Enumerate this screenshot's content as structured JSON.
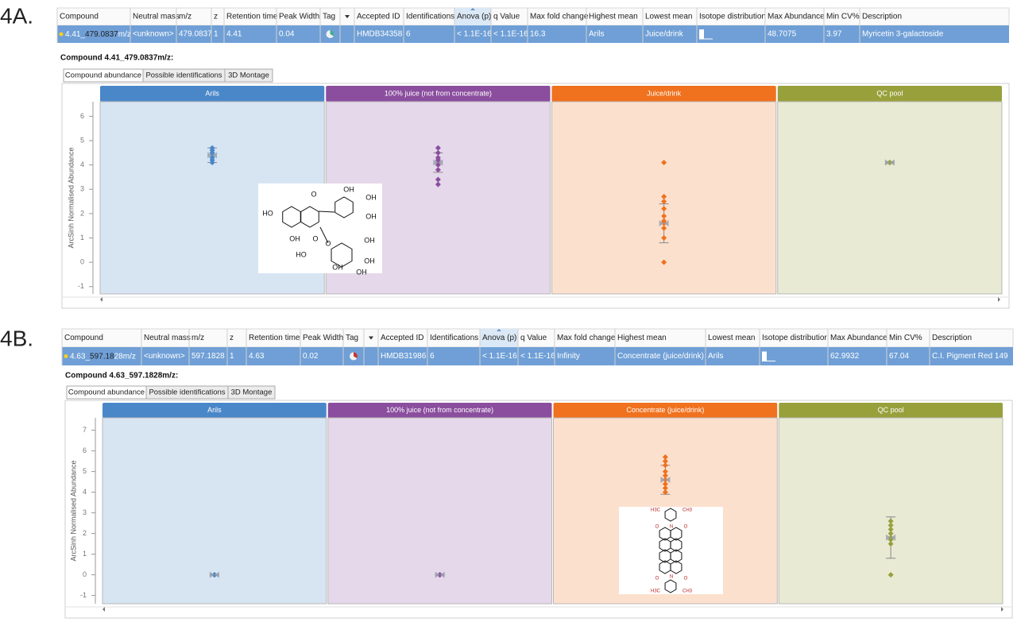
{
  "panels": [
    {
      "label": "4A.",
      "columns": [
        "Compound",
        "Neutral mass",
        "m/z",
        "z",
        "Retention time",
        "Peak Width",
        "Tag",
        null,
        "Accepted ID",
        "Identifications",
        "Anova (p)",
        "q Value",
        "Max fold change",
        "Highest mean",
        "Lowest mean",
        "Isotope distribution",
        "Max Abundance",
        "Min CV%",
        "Description"
      ],
      "row": [
        [
          "4.41_",
          "479.0837",
          "m/z"
        ],
        "<unknown>",
        "479.0837",
        "1",
        "4.41",
        "0.04",
        null,
        null,
        "HMDB34358",
        "6",
        "< 1.1E-16",
        "< 1.1E-16",
        "16.3",
        "Arils",
        "Juice/drink",
        null,
        "48.7075",
        "3.97",
        "Myricetin 3-galactoside"
      ],
      "compound_title": "Compound 4.41_479.0837m/z:",
      "tabs": [
        "Compound abundance",
        "Possible identifications",
        "3D Montage"
      ],
      "structure_labels": [
        "OH",
        "OH",
        "OH",
        "HO",
        "O",
        "OH",
        "O",
        "O",
        "OH",
        "HO",
        "OH",
        "OH",
        "OH"
      ]
    },
    {
      "label": "4B.",
      "columns": [
        "Compound",
        "Neutral mass",
        "m/z",
        "z",
        "Retention time",
        "Peak Width",
        "Tag",
        null,
        "Accepted ID",
        "Identifications",
        "Anova (p)",
        "q Value",
        "Max fold change",
        "Highest mean",
        "Lowest mean",
        "Isotope distributior",
        "Max Abundance",
        "Min CV%",
        "Description"
      ],
      "row": [
        [
          "4.63_",
          "597.18",
          "28m/z"
        ],
        "<unknown>",
        "597.1828",
        "1",
        "4.63",
        "0.02",
        null,
        null,
        "HMDB31986",
        "6",
        "< 1.1E-16",
        "< 1.1E-16",
        "Infinity",
        "Concentrate (juice/drink)",
        "Arils",
        null,
        "62.9932",
        "67.04",
        "C.I. Pigment Red 149"
      ],
      "compound_title": "Compound 4.63_597.1828m/z:",
      "tabs": [
        "Compound abundance",
        "Possible identifications",
        "3D Montage"
      ],
      "structure_labels": [
        "H3C",
        "CH3",
        "O",
        "O",
        "N",
        "O",
        "O",
        "N",
        "H3C",
        "CH3"
      ]
    }
  ],
  "chart_data": [
    {
      "type": "strip",
      "y_label": "ArcSinh Normalised Abundance",
      "ylim": [
        -1.3,
        6.6
      ],
      "yticks": [
        -1,
        0,
        1,
        2,
        3,
        4,
        5,
        6
      ],
      "groups": [
        {
          "name": "Arils",
          "color": "#4a87c9",
          "values": [
            4.1,
            4.2,
            4.3,
            4.4,
            4.5,
            4.6,
            4.7
          ],
          "mean": 4.4,
          "error": 0.3
        },
        {
          "name": "100% juice (not from concentrate)",
          "color": "#8b4e9e",
          "values": [
            3.2,
            3.4,
            3.8,
            4.0,
            4.1,
            4.2,
            4.3,
            4.5,
            4.7
          ],
          "mean": 4.1,
          "error": 0.4
        },
        {
          "name": "Juice/drink",
          "color": "#f0711e",
          "values": [
            4.1,
            2.7,
            2.5,
            2.2,
            1.9,
            1.7,
            1.6,
            1.4,
            1.0,
            0.0
          ],
          "mean": 1.6,
          "error": 0.8
        },
        {
          "name": "QC pool",
          "color": "#98a03c",
          "values": [
            4.1,
            4.1,
            4.1
          ],
          "mean": 4.1,
          "error": 0.03
        }
      ]
    },
    {
      "type": "strip",
      "y_label": "ArcSinh Normalised Abundance",
      "ylim": [
        -1.4,
        7.6
      ],
      "yticks": [
        -1,
        0,
        1,
        2,
        3,
        4,
        5,
        6,
        7
      ],
      "groups": [
        {
          "name": "Arils",
          "color": "#4a87c9",
          "values": [
            0.0,
            0.0,
            0.0
          ],
          "mean": 0.0,
          "error": 0.02
        },
        {
          "name": "100% juice (not from concentrate)",
          "color": "#8b4e9e",
          "values": [
            0.0,
            0.0,
            0.0
          ],
          "mean": 0.0,
          "error": 0.02
        },
        {
          "name": "Concentrate (juice/drink)",
          "color": "#f0711e",
          "values": [
            5.7,
            5.5,
            5.3,
            5.0,
            4.8,
            4.6,
            4.4,
            4.2,
            4.0
          ],
          "mean": 4.6,
          "error": 0.7
        },
        {
          "name": "QC pool",
          "color": "#98a03c",
          "values": [
            2.6,
            2.4,
            2.2,
            2.0,
            1.8,
            1.7,
            1.5,
            0.0
          ],
          "mean": 1.8,
          "error": 1.0
        }
      ]
    }
  ]
}
